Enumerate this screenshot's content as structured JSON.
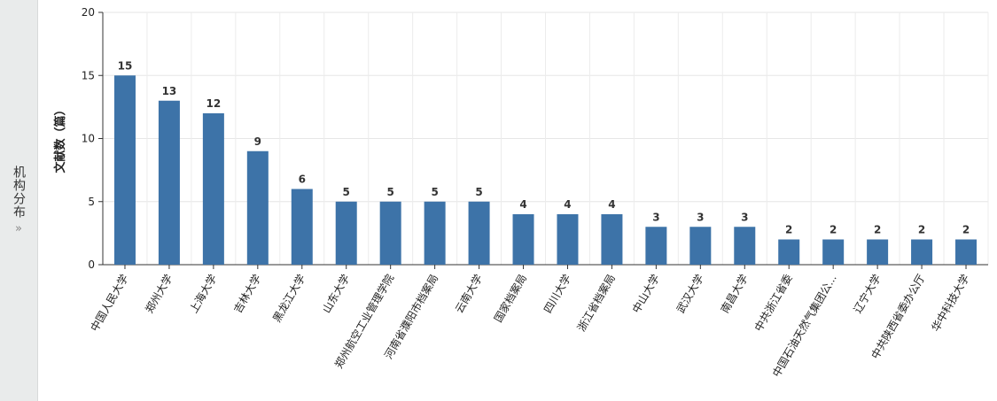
{
  "side_tab": {
    "label": "机构分布",
    "chevron": "»"
  },
  "chart_data": {
    "type": "bar",
    "ylabel": "文献数（篇）",
    "ylim": [
      0,
      20
    ],
    "yticks": [
      0,
      5,
      10,
      15,
      20
    ],
    "grid": true,
    "bar_color": "#3d73a8",
    "categories": [
      "中国人民大学",
      "郑州大学",
      "上海大学",
      "吉林大学",
      "黑龙江大学",
      "山东大学",
      "郑州航空工业管理学院",
      "河南省濮阳市档案局",
      "云南大学",
      "国家档案局",
      "四川大学",
      "浙江省档案局",
      "中山大学",
      "武汉大学",
      "南昌大学",
      "中共浙江省委",
      "中国石油天然气集团公...",
      "辽宁大学",
      "中共陕西省委办公厅",
      "华中科技大学"
    ],
    "values": [
      15,
      13,
      12,
      9,
      6,
      5,
      5,
      5,
      5,
      4,
      4,
      4,
      3,
      3,
      3,
      2,
      2,
      2,
      2,
      2
    ]
  }
}
